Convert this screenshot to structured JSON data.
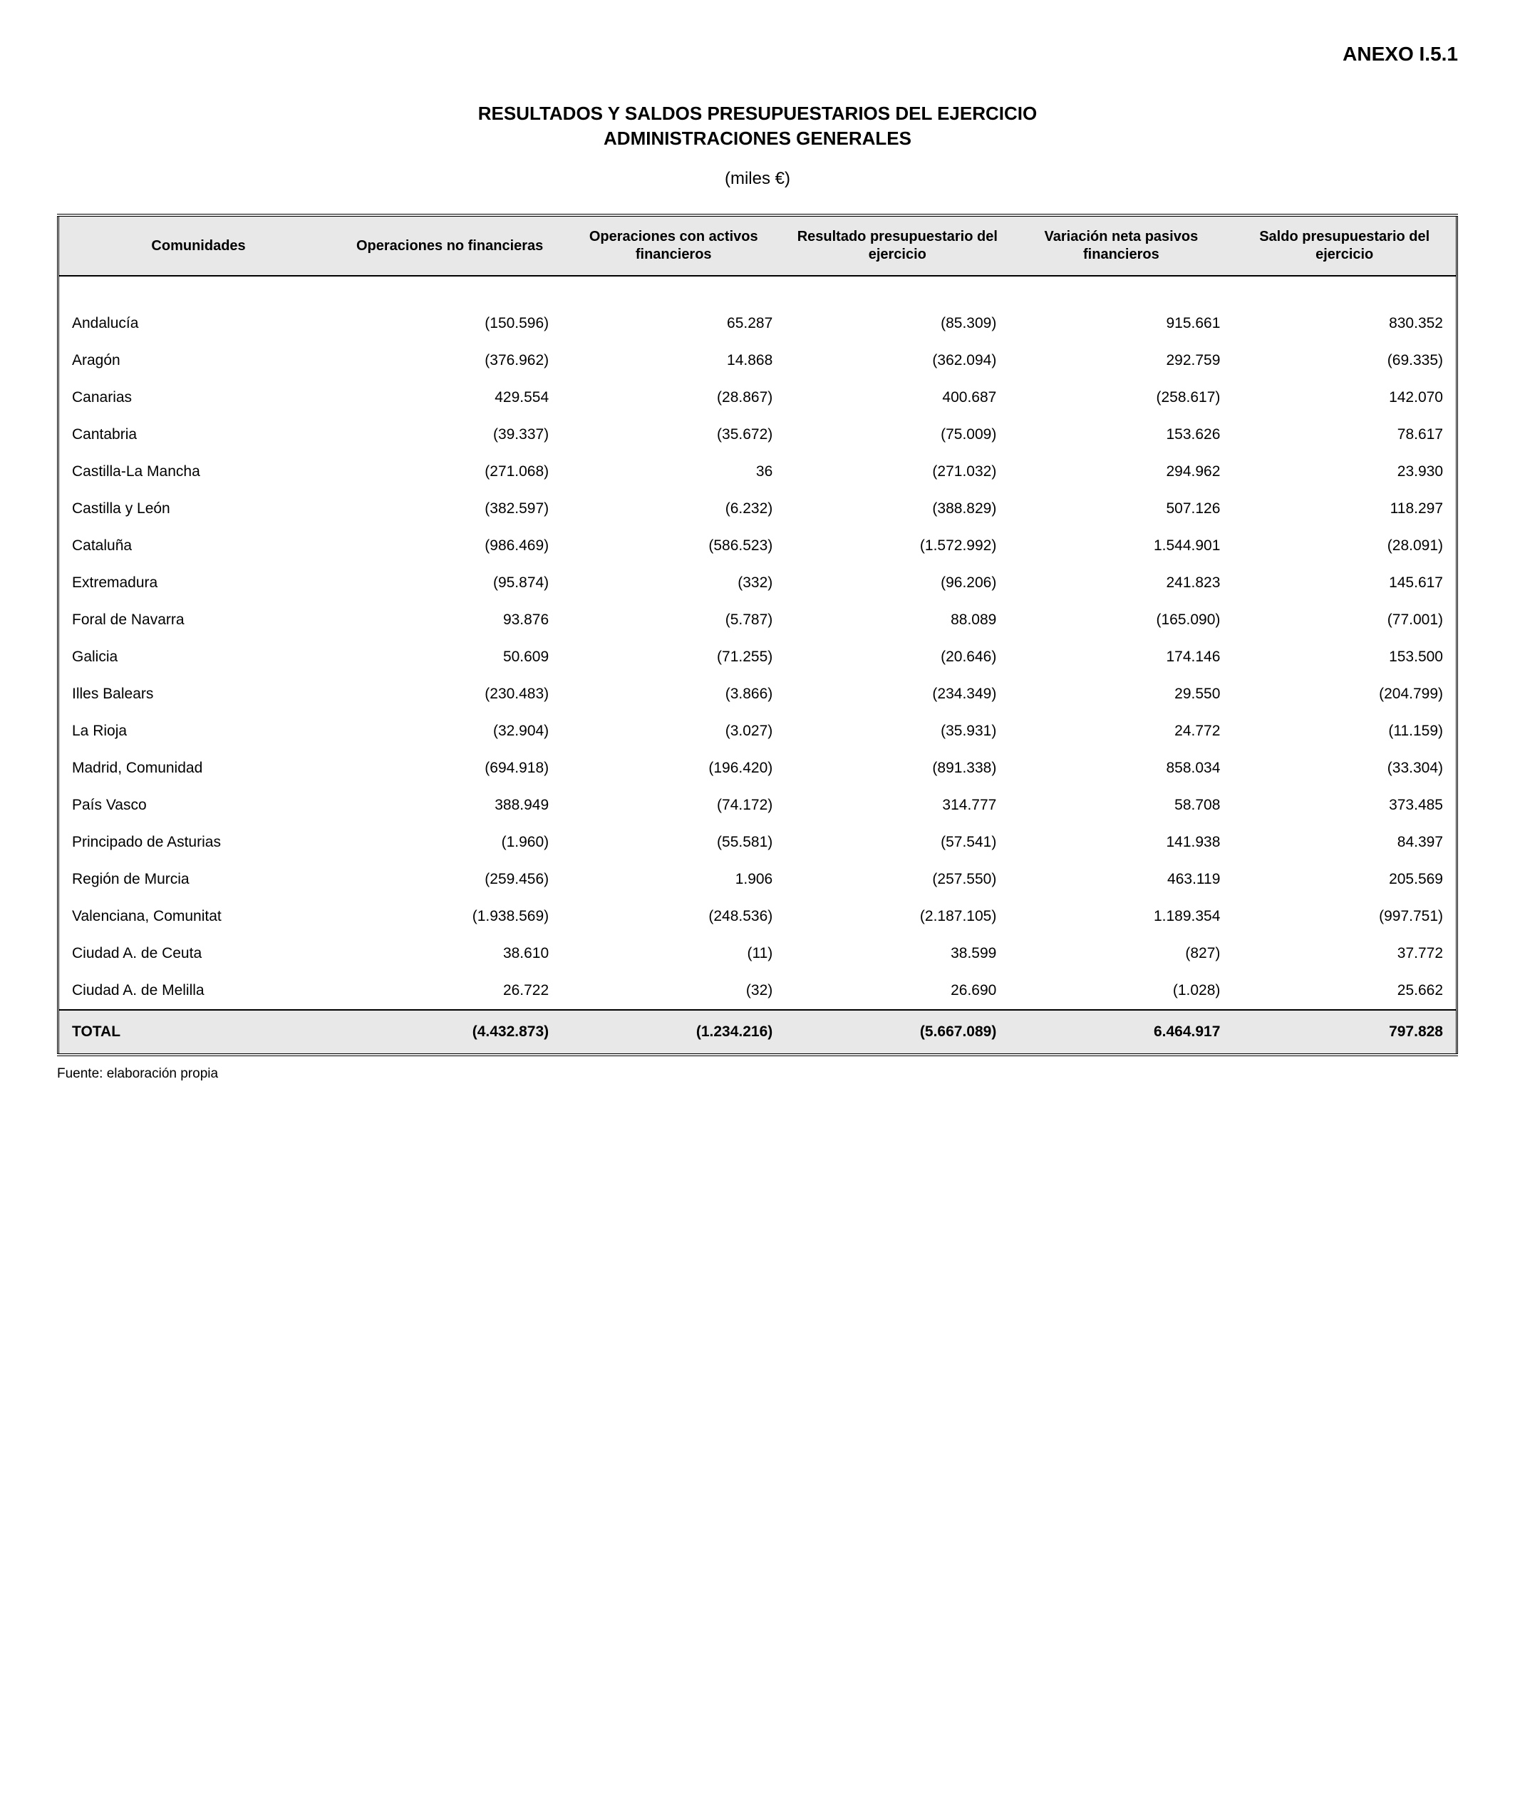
{
  "annex_label": "ANEXO I.5.1",
  "title_line1": "RESULTADOS Y SALDOS PRESUPUESTARIOS DEL EJERCICIO",
  "title_line2": "ADMINISTRACIONES GENERALES",
  "units": "(miles €)",
  "source": "Fuente: elaboración propia",
  "columns": [
    "Comunidades",
    "Operaciones no financieras",
    "Operaciones con activos financieros",
    "Resultado presupuestario del ejercicio",
    "Variación neta pasivos financieros",
    "Saldo presupuestario del ejercicio"
  ],
  "rows": [
    {
      "label": "Andalucía",
      "c1": "(150.596)",
      "c2": "65.287",
      "c3": "(85.309)",
      "c4": "915.661",
      "c5": "830.352"
    },
    {
      "label": "Aragón",
      "c1": "(376.962)",
      "c2": "14.868",
      "c3": "(362.094)",
      "c4": "292.759",
      "c5": "(69.335)"
    },
    {
      "label": "Canarias",
      "c1": "429.554",
      "c2": "(28.867)",
      "c3": "400.687",
      "c4": "(258.617)",
      "c5": "142.070"
    },
    {
      "label": "Cantabria",
      "c1": "(39.337)",
      "c2": "(35.672)",
      "c3": "(75.009)",
      "c4": "153.626",
      "c5": "78.617"
    },
    {
      "label": "Castilla-La Mancha",
      "c1": "(271.068)",
      "c2": "36",
      "c3": "(271.032)",
      "c4": "294.962",
      "c5": "23.930"
    },
    {
      "label": "Castilla y León",
      "c1": "(382.597)",
      "c2": "(6.232)",
      "c3": "(388.829)",
      "c4": "507.126",
      "c5": "118.297"
    },
    {
      "label": "Cataluña",
      "c1": "(986.469)",
      "c2": "(586.523)",
      "c3": "(1.572.992)",
      "c4": "1.544.901",
      "c5": "(28.091)"
    },
    {
      "label": "Extremadura",
      "c1": "(95.874)",
      "c2": "(332)",
      "c3": "(96.206)",
      "c4": "241.823",
      "c5": "145.617"
    },
    {
      "label": "Foral de Navarra",
      "c1": "93.876",
      "c2": "(5.787)",
      "c3": "88.089",
      "c4": "(165.090)",
      "c5": "(77.001)"
    },
    {
      "label": "Galicia",
      "c1": "50.609",
      "c2": "(71.255)",
      "c3": "(20.646)",
      "c4": "174.146",
      "c5": "153.500"
    },
    {
      "label": "Illes Balears",
      "c1": "(230.483)",
      "c2": "(3.866)",
      "c3": "(234.349)",
      "c4": "29.550",
      "c5": "(204.799)"
    },
    {
      "label": "La Rioja",
      "c1": "(32.904)",
      "c2": "(3.027)",
      "c3": "(35.931)",
      "c4": "24.772",
      "c5": "(11.159)"
    },
    {
      "label": "Madrid, Comunidad",
      "c1": "(694.918)",
      "c2": "(196.420)",
      "c3": "(891.338)",
      "c4": "858.034",
      "c5": "(33.304)"
    },
    {
      "label": "País Vasco",
      "c1": "388.949",
      "c2": "(74.172)",
      "c3": "314.777",
      "c4": "58.708",
      "c5": "373.485"
    },
    {
      "label": "Principado de Asturias",
      "c1": "(1.960)",
      "c2": "(55.581)",
      "c3": "(57.541)",
      "c4": "141.938",
      "c5": "84.397"
    },
    {
      "label": "Región de Murcia",
      "c1": "(259.456)",
      "c2": "1.906",
      "c3": "(257.550)",
      "c4": "463.119",
      "c5": "205.569"
    },
    {
      "label": " Valenciana, Comunitat",
      "c1": "(1.938.569)",
      "c2": "(248.536)",
      "c3": "(2.187.105)",
      "c4": "1.189.354",
      "c5": "(997.751)"
    },
    {
      "label": "Ciudad A. de Ceuta",
      "c1": "38.610",
      "c2": "(11)",
      "c3": "38.599",
      "c4": "(827)",
      "c5": "37.772"
    },
    {
      "label": "Ciudad A. de Melilla",
      "c1": "26.722",
      "c2": "(32)",
      "c3": "26.690",
      "c4": "(1.028)",
      "c5": "25.662"
    }
  ],
  "total": {
    "label": "TOTAL",
    "c1": "(4.432.873)",
    "c2": "(1.234.216)",
    "c3": "(5.667.089)",
    "c4": "6.464.917",
    "c5": "797.828"
  }
}
